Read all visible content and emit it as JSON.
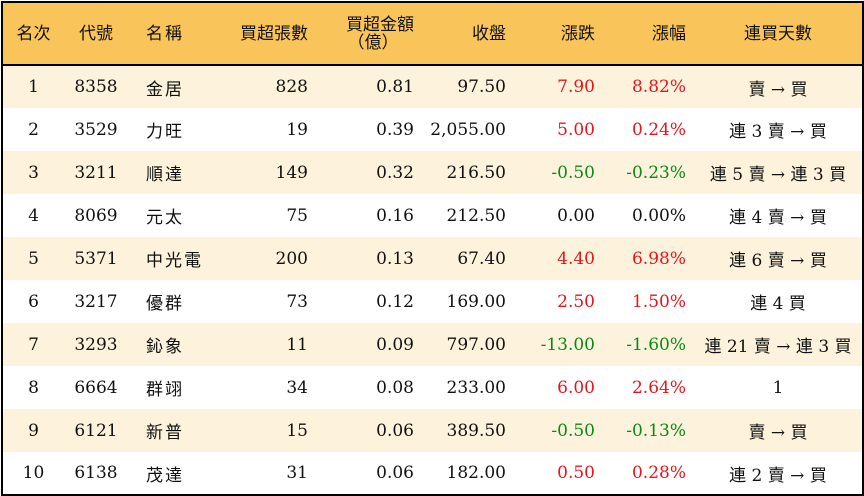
{
  "headers": {
    "rank": "名次",
    "code": "代號",
    "name": "名稱",
    "net_buy_lots": "買超張數",
    "net_buy_amount_line1": "買超金額",
    "net_buy_amount_line2": "（億）",
    "close": "收盤",
    "change": "漲跌",
    "change_pct": "漲幅",
    "consecutive_days": "連買天數"
  },
  "colors": {
    "header_bg": "#f9c55a",
    "stripe_bg": "#fdf3dc",
    "up": "#e8141c",
    "down": "#0a8a14"
  },
  "rows": [
    {
      "rank": "1",
      "code": "8358",
      "name": "金居",
      "lots": "828",
      "amount": "0.81",
      "close": "97.50",
      "change": "7.90",
      "pct": "8.82%",
      "trend": "up",
      "days": "賣 → 買"
    },
    {
      "rank": "2",
      "code": "3529",
      "name": "力旺",
      "lots": "19",
      "amount": "0.39",
      "close": "2,055.00",
      "change": "5.00",
      "pct": "0.24%",
      "trend": "up",
      "days": "連 3 賣 → 買"
    },
    {
      "rank": "3",
      "code": "3211",
      "name": "順達",
      "lots": "149",
      "amount": "0.32",
      "close": "216.50",
      "change": "-0.50",
      "pct": "-0.23%",
      "trend": "down",
      "days": "連 5 賣 → 連 3 買"
    },
    {
      "rank": "4",
      "code": "8069",
      "name": "元太",
      "lots": "75",
      "amount": "0.16",
      "close": "212.50",
      "change": "0.00",
      "pct": "0.00%",
      "trend": "flat",
      "days": "連 4 賣 → 買"
    },
    {
      "rank": "5",
      "code": "5371",
      "name": "中光電",
      "lots": "200",
      "amount": "0.13",
      "close": "67.40",
      "change": "4.40",
      "pct": "6.98%",
      "trend": "up",
      "days": "連 6 賣 → 買"
    },
    {
      "rank": "6",
      "code": "3217",
      "name": "優群",
      "lots": "73",
      "amount": "0.12",
      "close": "169.00",
      "change": "2.50",
      "pct": "1.50%",
      "trend": "up",
      "days": "連 4 買"
    },
    {
      "rank": "7",
      "code": "3293",
      "name": "鈊象",
      "lots": "11",
      "amount": "0.09",
      "close": "797.00",
      "change": "-13.00",
      "pct": "-1.60%",
      "trend": "down",
      "days": "連 21 賣 → 連 3 買"
    },
    {
      "rank": "8",
      "code": "6664",
      "name": "群翊",
      "lots": "34",
      "amount": "0.08",
      "close": "233.00",
      "change": "6.00",
      "pct": "2.64%",
      "trend": "up",
      "days": "1"
    },
    {
      "rank": "9",
      "code": "6121",
      "name": "新普",
      "lots": "15",
      "amount": "0.06",
      "close": "389.50",
      "change": "-0.50",
      "pct": "-0.13%",
      "trend": "down",
      "days": "賣 → 買"
    },
    {
      "rank": "10",
      "code": "6138",
      "name": "茂達",
      "lots": "31",
      "amount": "0.06",
      "close": "182.00",
      "change": "0.50",
      "pct": "0.28%",
      "trend": "up",
      "days": "連 2 賣 → 買"
    }
  ]
}
